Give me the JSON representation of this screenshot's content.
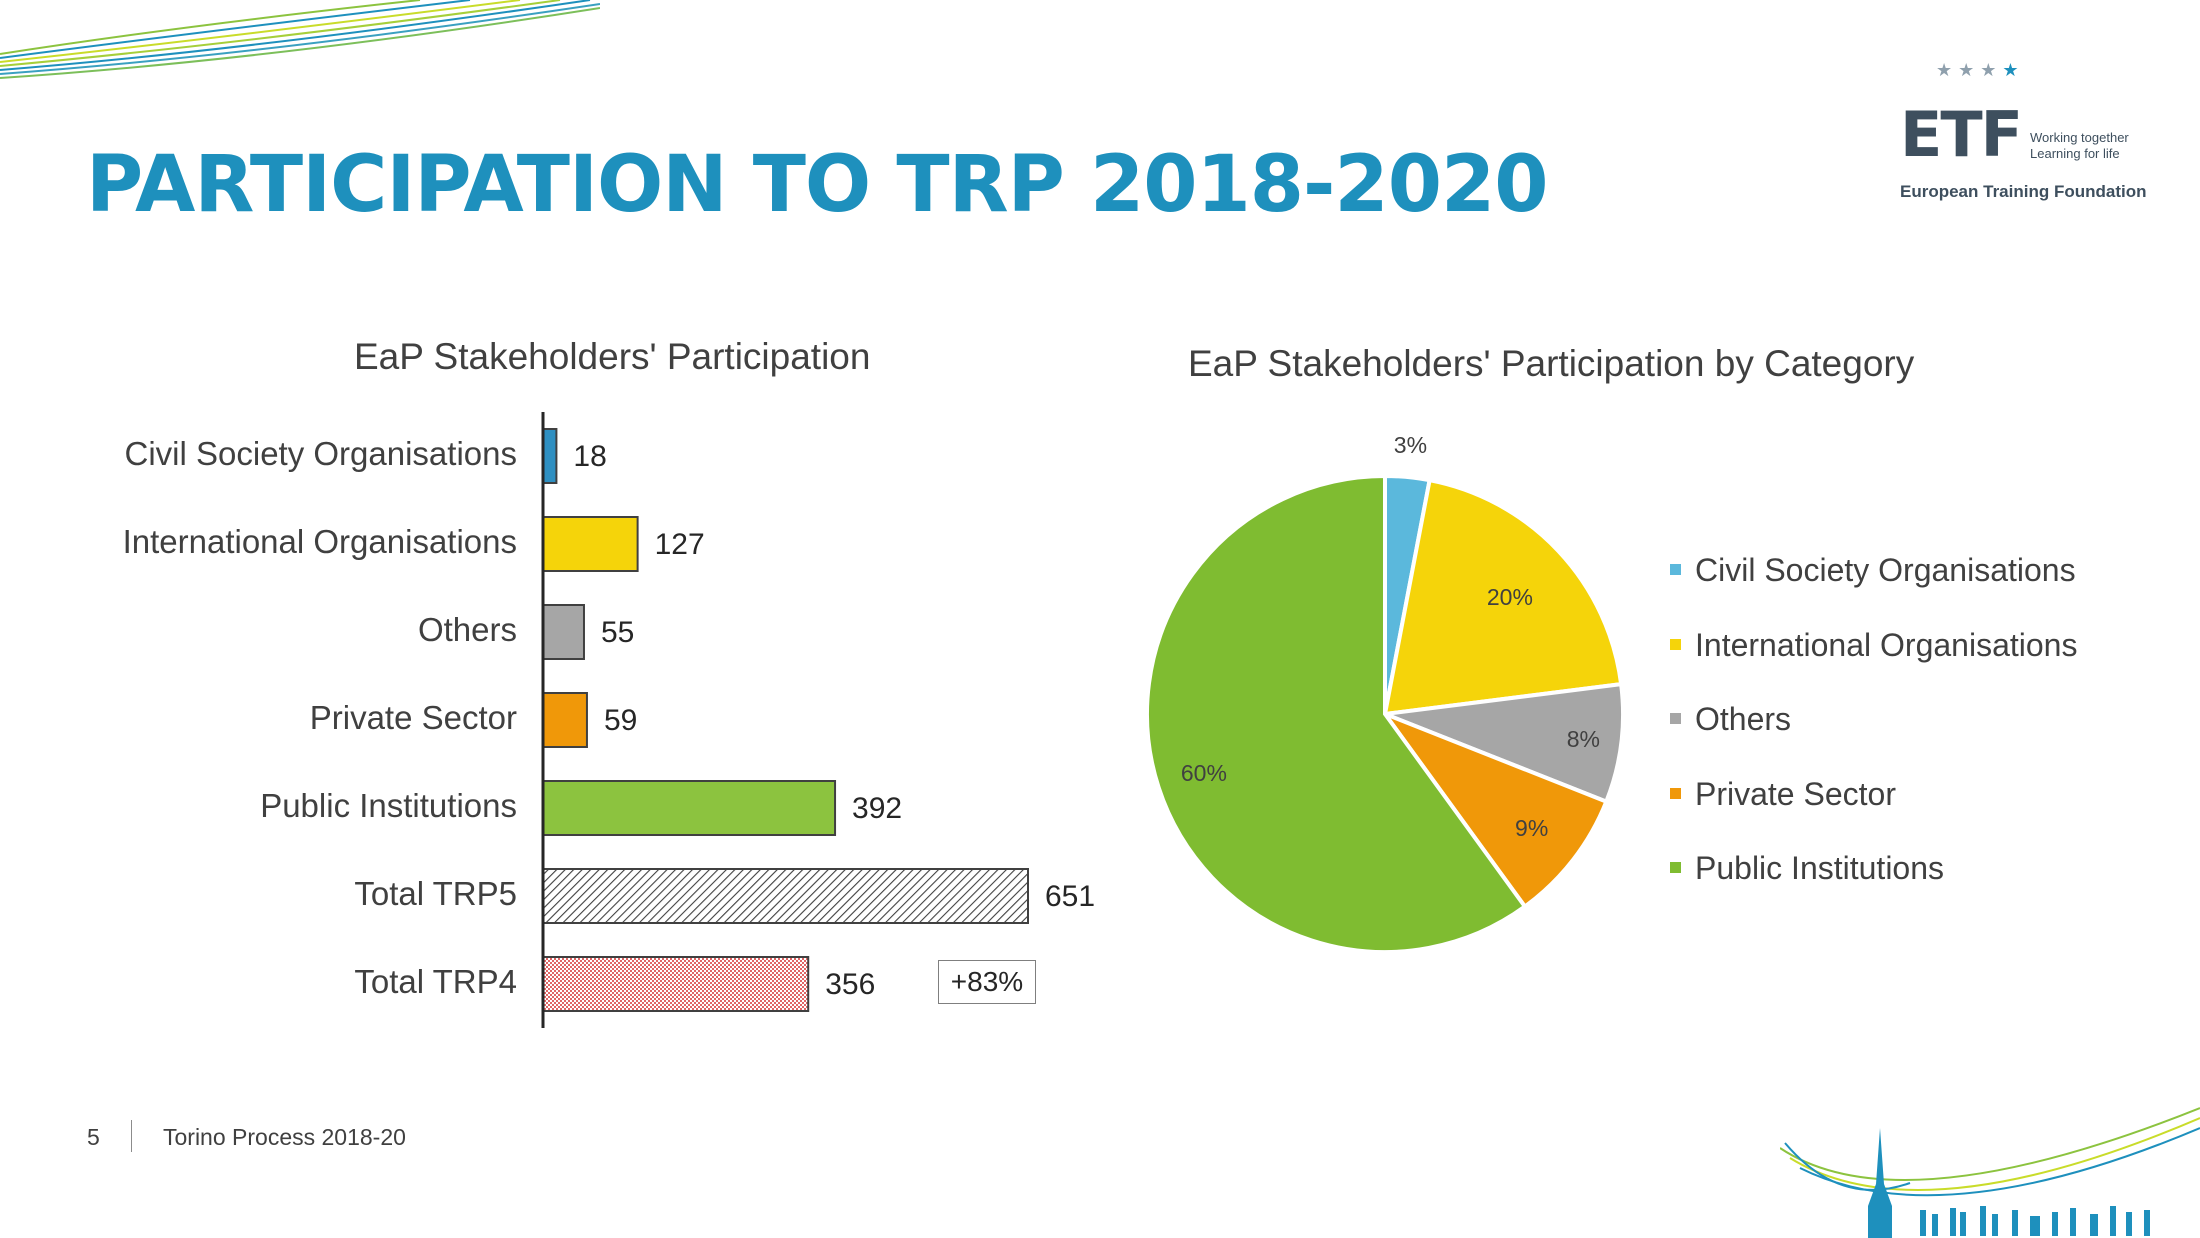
{
  "slide": {
    "title": "PARTICIPATION TO TRP 2018-2020",
    "page_number": "5",
    "footer": "Torino Process 2018-20"
  },
  "logo": {
    "name": "ETF",
    "tagline_1": "Working together",
    "tagline_2": "Learning for life",
    "org": "European Training Foundation"
  },
  "colors": {
    "title": "#1e90bd",
    "civil": "#2e8fc1",
    "intl": "#f5d40a",
    "others": "#a6a6a6",
    "private": "#f09809",
    "public": "#8cc33f",
    "trp5_hatch": "#404040",
    "trp4_hatch": "#e06666"
  },
  "chart_data": [
    {
      "type": "bar",
      "orientation": "horizontal",
      "title": "EaP Stakeholders' Participation",
      "categories": [
        "Civil Society Organisations",
        "International Organisations",
        "Others",
        "Private Sector",
        "Public Institutions",
        "Total TRP5",
        "Total TRP4"
      ],
      "values": [
        18,
        127,
        55,
        59,
        392,
        651,
        356
      ],
      "value_labels": [
        "18",
        "127",
        "55",
        "59",
        "392",
        "651",
        "356"
      ],
      "xlim": [
        0,
        700
      ],
      "annotation": "+83%"
    },
    {
      "type": "pie",
      "title": "EaP Stakeholders' Participation by Category",
      "labels": [
        "Civil Society Organisations",
        "International Organisations",
        "Others",
        "Private Sector",
        "Public Institutions"
      ],
      "values": [
        3,
        20,
        8,
        9,
        60
      ],
      "value_labels": [
        "3%",
        "20%",
        "8%",
        "9%",
        "60%"
      ],
      "colors": [
        "#5bb8dc",
        "#f5d40a",
        "#a6a6a6",
        "#f09809",
        "#7fbc31"
      ],
      "legend_position": "right"
    }
  ]
}
